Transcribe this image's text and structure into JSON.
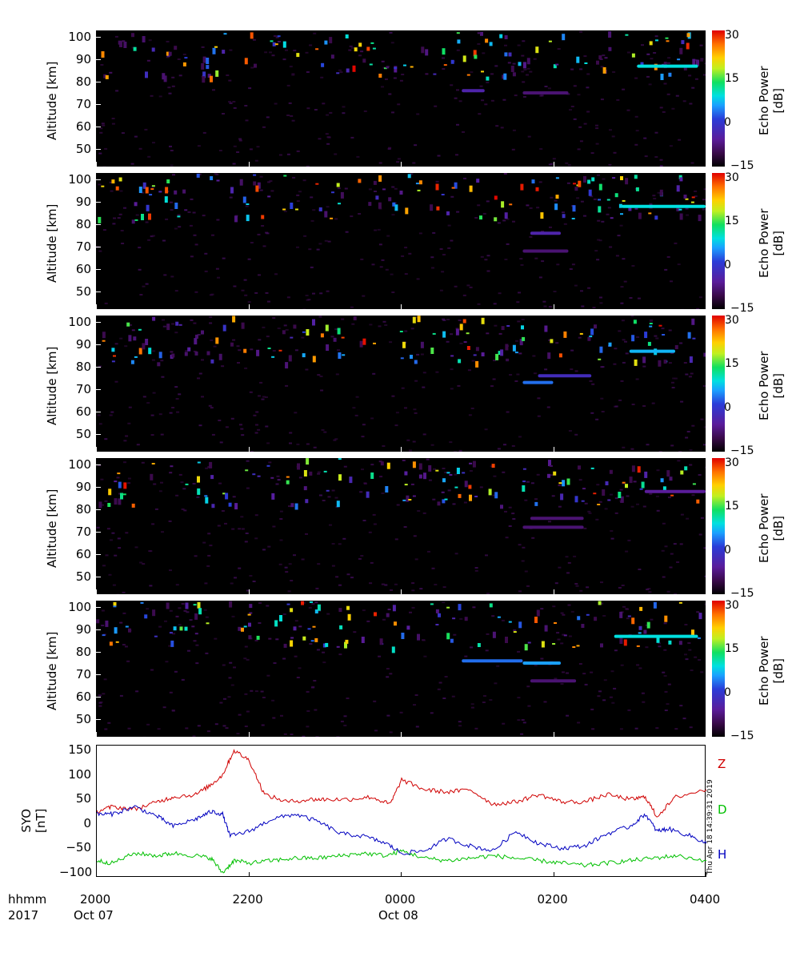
{
  "chart_data": [
    {
      "type": "heatmap",
      "panel": 1,
      "ylabel": "Altitude [km]",
      "yticks": [
        50,
        60,
        70,
        80,
        90,
        100
      ],
      "ylim": [
        42,
        103
      ],
      "colorbar": {
        "title": [
          "Echo Power",
          "[dB]"
        ],
        "ticks": [
          "30",
          "15",
          "0",
          "-15"
        ],
        "range": [
          -15,
          32
        ]
      },
      "features": [
        {
          "t_start": 20.0,
          "t_end": 4.0,
          "alt": 89,
          "note": "scattered echoes 85-102 km"
        },
        {
          "t_start": 3.1,
          "t_end": 3.9,
          "alt": 87,
          "power": 5
        },
        {
          "t_start": 1.6,
          "t_end": 2.2,
          "alt": 75,
          "power": -8
        },
        {
          "t_start": 0.8,
          "t_end": 1.1,
          "alt": 76,
          "power": -5
        }
      ]
    },
    {
      "type": "heatmap",
      "panel": 2,
      "ylabel": "Altitude [km]",
      "yticks": [
        50,
        60,
        70,
        80,
        90,
        100
      ],
      "ylim": [
        42,
        103
      ],
      "colorbar": {
        "title": [
          "Echo Power",
          "[dB]"
        ],
        "ticks": [
          "30",
          "15",
          "0",
          "-15"
        ],
        "range": [
          -15,
          32
        ]
      },
      "features": [
        {
          "t_start": 2.9,
          "t_end": 4.0,
          "alt": 88,
          "power": 5
        },
        {
          "t_start": 1.6,
          "t_end": 2.2,
          "alt": 68,
          "power": -8
        },
        {
          "t_start": 1.7,
          "t_end": 2.1,
          "alt": 76,
          "power": -5
        }
      ]
    },
    {
      "type": "heatmap",
      "panel": 3,
      "ylabel": "Altitude [km]",
      "yticks": [
        50,
        60,
        70,
        80,
        90,
        100
      ],
      "ylim": [
        42,
        103
      ],
      "colorbar": {
        "title": [
          "Echo Power",
          "[dB]"
        ],
        "ticks": [
          "30",
          "15",
          "0",
          "-15"
        ],
        "range": [
          -15,
          32
        ]
      },
      "features": [
        {
          "t_start": 3.0,
          "t_end": 3.6,
          "alt": 87,
          "power": 3
        },
        {
          "t_start": 1.8,
          "t_end": 2.5,
          "alt": 76,
          "power": -4
        },
        {
          "t_start": 1.6,
          "t_end": 2.0,
          "alt": 73,
          "power": 0
        }
      ]
    },
    {
      "type": "heatmap",
      "panel": 4,
      "ylabel": "Altitude [km]",
      "yticks": [
        50,
        60,
        70,
        80,
        90,
        100
      ],
      "ylim": [
        42,
        103
      ],
      "colorbar": {
        "title": [
          "Echo Power",
          "[dB]"
        ],
        "ticks": [
          "30",
          "15",
          "0",
          "-15"
        ],
        "range": [
          -15,
          32
        ]
      },
      "features": [
        {
          "t_start": 3.2,
          "t_end": 4.0,
          "alt": 88,
          "power": -6
        },
        {
          "t_start": 1.7,
          "t_end": 2.4,
          "alt": 76,
          "power": -8
        },
        {
          "t_start": 1.6,
          "t_end": 2.4,
          "alt": 72,
          "power": -8
        }
      ]
    },
    {
      "type": "heatmap",
      "panel": 5,
      "ylabel": "Altitude [km]",
      "yticks": [
        50,
        60,
        70,
        80,
        90,
        100
      ],
      "ylim": [
        42,
        103
      ],
      "colorbar": {
        "title": [
          "Echo Power",
          "[dB]"
        ],
        "ticks": [
          "30",
          "15",
          "0",
          "-15"
        ],
        "range": [
          -15,
          32
        ]
      },
      "features": [
        {
          "t_start": 2.8,
          "t_end": 3.9,
          "alt": 87,
          "power": 5
        },
        {
          "t_start": 0.8,
          "t_end": 1.6,
          "alt": 76,
          "power": 0
        },
        {
          "t_start": 1.6,
          "t_end": 2.1,
          "alt": 75,
          "power": 2
        },
        {
          "t_start": 1.7,
          "t_end": 2.3,
          "alt": 67,
          "power": -8
        }
      ]
    },
    {
      "type": "line",
      "panel": 6,
      "ylabel": [
        "SYO",
        "[nT]"
      ],
      "yticks": [
        150,
        100,
        50,
        0,
        -50,
        -100
      ],
      "ylim": [
        -110,
        160
      ],
      "series": [
        {
          "name": "Z",
          "color": "#d00000",
          "t": [
            20.0,
            20.2,
            20.5,
            20.8,
            21.0,
            21.3,
            21.5,
            21.65,
            21.8,
            22.0,
            22.2,
            22.5,
            22.8,
            23.0,
            23.3,
            23.6,
            23.85,
            24.0,
            24.3,
            24.6,
            24.9,
            25.2,
            25.5,
            25.8,
            26.1,
            26.4,
            26.7,
            27.0,
            27.2,
            27.35,
            27.6,
            28.0
          ],
          "v": [
            25,
            35,
            30,
            45,
            55,
            60,
            80,
            100,
            150,
            130,
            60,
            45,
            50,
            50,
            50,
            55,
            40,
            90,
            70,
            65,
            70,
            40,
            45,
            60,
            45,
            45,
            60,
            50,
            55,
            15,
            55,
            70
          ]
        },
        {
          "name": "D",
          "color": "#00c000",
          "t": [
            20.0,
            20.2,
            20.5,
            20.8,
            21.0,
            21.3,
            21.5,
            21.65,
            21.8,
            22.0,
            22.3,
            22.6,
            22.9,
            23.2,
            23.5,
            23.8,
            24.0,
            24.3,
            24.6,
            24.9,
            25.2,
            25.5,
            25.8,
            26.1,
            26.4,
            26.7,
            27.0,
            27.3,
            27.6,
            28.0
          ],
          "v": [
            -75,
            -80,
            -60,
            -65,
            -60,
            -65,
            -70,
            -100,
            -75,
            -80,
            -75,
            -70,
            -70,
            -65,
            -60,
            -65,
            -55,
            -70,
            -75,
            -70,
            -65,
            -70,
            -75,
            -80,
            -85,
            -80,
            -75,
            -70,
            -65,
            -75
          ]
        },
        {
          "name": "H",
          "color": "#0000c0",
          "t": [
            20.0,
            20.2,
            20.5,
            20.8,
            21.0,
            21.3,
            21.5,
            21.65,
            21.75,
            22.0,
            22.3,
            22.6,
            22.9,
            23.2,
            23.5,
            23.8,
            24.0,
            24.3,
            24.6,
            24.9,
            25.2,
            25.5,
            25.8,
            26.1,
            26.4,
            26.7,
            27.0,
            27.2,
            27.35,
            27.5,
            27.8,
            28.0
          ],
          "v": [
            20,
            20,
            35,
            15,
            -5,
            10,
            25,
            20,
            -25,
            -15,
            10,
            20,
            5,
            -20,
            -25,
            -40,
            -60,
            -55,
            -30,
            -45,
            -55,
            -15,
            -40,
            -50,
            -45,
            -20,
            -5,
            20,
            -15,
            -10,
            -25,
            -40
          ]
        }
      ]
    }
  ],
  "xaxis": {
    "row_label": "hhmm",
    "year_label": "2017",
    "ticks": [
      {
        "t": 20.0,
        "label": "2000",
        "date": "Oct 07"
      },
      {
        "t": 22.0,
        "label": "2200",
        "date": ""
      },
      {
        "t": 24.0,
        "label": "0000",
        "date": "Oct 08"
      },
      {
        "t": 26.0,
        "label": "0200",
        "date": ""
      },
      {
        "t": 28.0,
        "label": "0400",
        "date": ""
      }
    ],
    "range": [
      20.0,
      28.0
    ]
  },
  "stamp": "Thu Apr 18 14:39:31 2019"
}
